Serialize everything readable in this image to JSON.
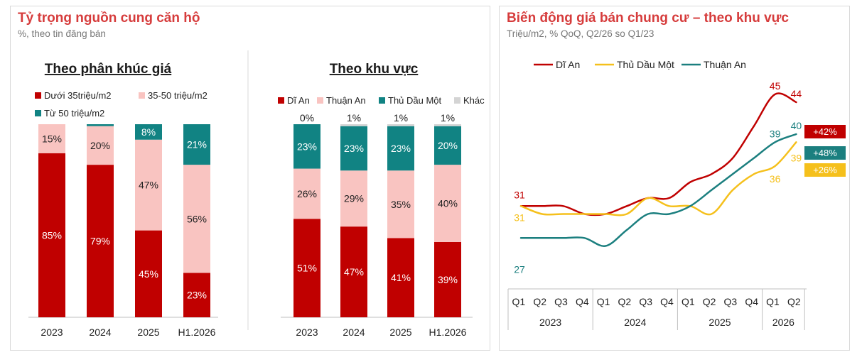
{
  "left_panel": {
    "title": "Tỷ trọng nguồn cung căn hộ",
    "subtitle": "%, theo tin đăng bán"
  },
  "right_panel": {
    "title": "Biến động giá bán chung cư – theo khu vực",
    "subtitle": "Triệu/m2, % QoQ, Q2/26 so Q1/23"
  },
  "colors": {
    "dark_red": "#c00000",
    "pink": "#f9c4c1",
    "teal": "#118383",
    "grey": "#d4d4d4",
    "yellow": "#f5c01c",
    "line_teal": "#1b7f7f"
  },
  "chart_data": [
    {
      "type": "bar",
      "stacked": true,
      "title": "Theo phân khúc giá",
      "categories": [
        "2023",
        "2024",
        "2025",
        "H1.2026"
      ],
      "series": [
        {
          "name": "Dưới 35triệu/m2",
          "values": [
            85,
            79,
            45,
            23
          ],
          "labels": [
            "85%",
            "79%",
            "45%",
            "23%"
          ],
          "color": "#c00000"
        },
        {
          "name": "35-50 triệu/m2",
          "values": [
            15,
            20,
            47,
            56
          ],
          "labels": [
            "15%",
            "20%",
            "47%",
            "56%"
          ],
          "color": "#f9c4c1"
        },
        {
          "name": "Từ 50 triệu/m2",
          "values": [
            0,
            1,
            8,
            21
          ],
          "labels": [
            "",
            "",
            "8%",
            "21%"
          ],
          "color": "#118383"
        }
      ],
      "ylim": [
        0,
        100
      ],
      "legend": "top"
    },
    {
      "type": "bar",
      "stacked": true,
      "title": "Theo khu vực",
      "categories": [
        "2023",
        "2024",
        "2025",
        "H1.2026"
      ],
      "series": [
        {
          "name": "Dĩ An",
          "values": [
            51,
            47,
            41,
            39
          ],
          "labels": [
            "51%",
            "47%",
            "41%",
            "39%"
          ],
          "color": "#c00000"
        },
        {
          "name": "Thuận An",
          "values": [
            26,
            29,
            35,
            40
          ],
          "labels": [
            "26%",
            "29%",
            "35%",
            "40%"
          ],
          "color": "#f9c4c1"
        },
        {
          "name": "Thủ Dầu Một",
          "values": [
            23,
            23,
            23,
            20
          ],
          "labels": [
            "23%",
            "23%",
            "23%",
            "20%"
          ],
          "color": "#118383"
        },
        {
          "name": "Khác",
          "values": [
            0,
            1,
            1,
            1
          ],
          "labels": [
            "0%",
            "1%",
            "1%",
            "1%"
          ],
          "color": "#d4d4d4"
        }
      ],
      "ylim": [
        0,
        100
      ],
      "legend": "top"
    },
    {
      "type": "line",
      "categories": [
        "Q1",
        "Q2",
        "Q3",
        "Q4",
        "Q1",
        "Q2",
        "Q3",
        "Q4",
        "Q1",
        "Q2",
        "Q3",
        "Q4",
        "Q1",
        "Q2"
      ],
      "years": [
        {
          "label": "2023",
          "span": 4
        },
        {
          "label": "2024",
          "span": 4
        },
        {
          "label": "2025",
          "span": 4
        },
        {
          "label": "2026",
          "span": 2
        }
      ],
      "series": [
        {
          "name": "Dĩ An",
          "color": "#c00000",
          "values": [
            31,
            31,
            31,
            30,
            30,
            31,
            32,
            32,
            34,
            35,
            37,
            41,
            45,
            44
          ],
          "start_label": "31",
          "end_labels": [
            "45",
            "44"
          ],
          "change": "+42%"
        },
        {
          "name": "Thủ Dầu Một",
          "color": "#f5c01c",
          "values": [
            31,
            30,
            30,
            30,
            30,
            30,
            32,
            31,
            31,
            30,
            33,
            35,
            36,
            39
          ],
          "start_label": "31",
          "end_labels": [
            "36",
            "39"
          ],
          "change": "+26%"
        },
        {
          "name": "Thuận An",
          "color": "#1b7f7f",
          "values": [
            27,
            27,
            27,
            27,
            26,
            28,
            30,
            30,
            31,
            33,
            35,
            37,
            39,
            40
          ],
          "start_label": "27",
          "end_labels": [
            "39",
            "40"
          ],
          "change": "+48%"
        }
      ],
      "ylim": [
        20,
        48
      ],
      "legend": "top-left"
    }
  ]
}
